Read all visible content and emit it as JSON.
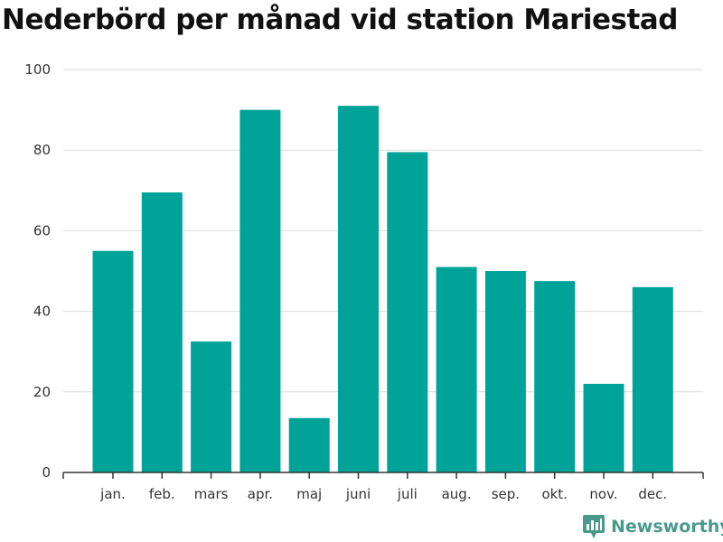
{
  "header": {
    "title": "Nederbörd per månad vid station Mariestad"
  },
  "chart_data": {
    "type": "bar",
    "title": "Nederbörd per månad vid station Mariestad",
    "xlabel": "",
    "ylabel": "",
    "categories": [
      "jan.",
      "feb.",
      "mars",
      "apr.",
      "maj",
      "juni",
      "juli",
      "aug.",
      "sep.",
      "okt.",
      "nov.",
      "dec."
    ],
    "values": [
      55,
      69.5,
      32.5,
      90,
      13.5,
      91,
      79.5,
      51,
      50,
      47.5,
      22,
      46
    ],
    "ylim": [
      0,
      100
    ],
    "yticks": [
      "0",
      "20",
      "40",
      "60",
      "80",
      "100"
    ],
    "grid": true,
    "bar_color": "#00a398"
  },
  "branding": {
    "name": "Newsworthy",
    "color": "#4a9a8c",
    "icon": "newsworthy-logo-icon"
  }
}
